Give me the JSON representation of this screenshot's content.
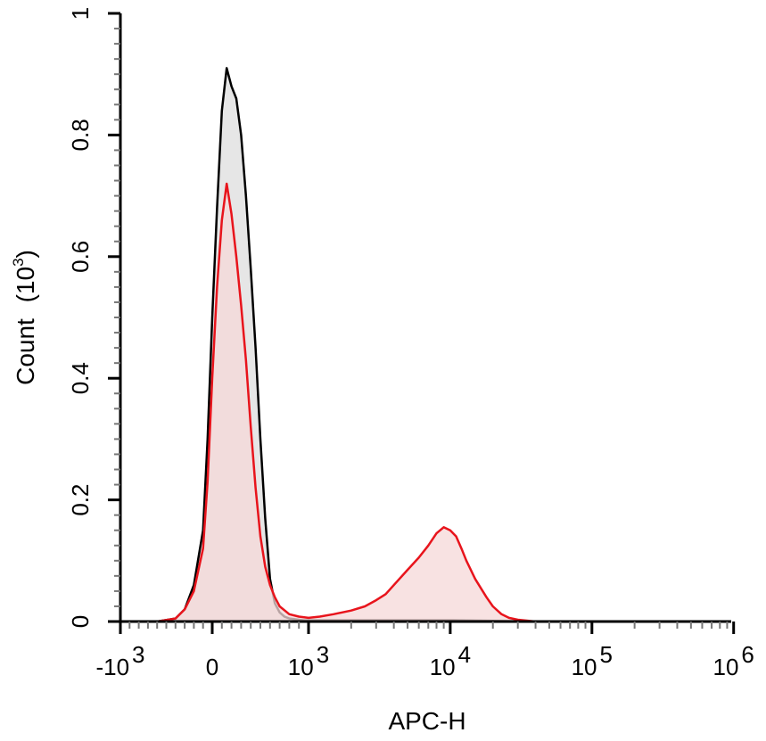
{
  "chart_data": {
    "type": "area",
    "xlabel": "APC-H",
    "ylabel": "Count",
    "ylabel_unit": "(10",
    "ylabel_unit_exp": "3",
    "ylabel_unit_close": ")",
    "x_scale": "biexponential",
    "xlim": [
      -1200,
      1000000
    ],
    "ylim": [
      0,
      1
    ],
    "grid": false,
    "x_ticks": [
      {
        "value": -1000,
        "base": "-10",
        "exp": "3"
      },
      {
        "value": 0,
        "base": "0",
        "exp": ""
      },
      {
        "value": 1000,
        "base": "10",
        "exp": "3"
      },
      {
        "value": 10000,
        "base": "10",
        "exp": "4"
      },
      {
        "value": 100000,
        "base": "10",
        "exp": "5"
      },
      {
        "value": 1000000,
        "base": "10",
        "exp": "6"
      }
    ],
    "y_ticks": [
      {
        "value": 0,
        "label": "0"
      },
      {
        "value": 0.2,
        "label": "0.2"
      },
      {
        "value": 0.4,
        "label": "0.4"
      },
      {
        "value": 0.6,
        "label": "0.6"
      },
      {
        "value": 0.8,
        "label": "0.8"
      },
      {
        "value": 1,
        "label": "1"
      }
    ],
    "series": [
      {
        "color": "#000000",
        "fill": "#e6e6e6",
        "x": [
          -800,
          -600,
          -400,
          -300,
          -200,
          -100,
          -50,
          0,
          50,
          100,
          150,
          200,
          250,
          300,
          350,
          400,
          450,
          500,
          550,
          600,
          650,
          700,
          750,
          800,
          850,
          900,
          950,
          1000,
          1100,
          1300,
          1600,
          2000,
          3000,
          5000,
          10000,
          20000,
          50000,
          100000
        ],
        "y": [
          0,
          0,
          0.005,
          0.02,
          0.06,
          0.15,
          0.3,
          0.5,
          0.68,
          0.84,
          0.91,
          0.88,
          0.86,
          0.8,
          0.7,
          0.58,
          0.45,
          0.3,
          0.17,
          0.07,
          0.03,
          0.015,
          0.008,
          0.005,
          0.004,
          0.003,
          0.002,
          0.002,
          0.002,
          0.002,
          0.002,
          0.002,
          0.002,
          0.002,
          0.002,
          0.001,
          0,
          0
        ]
      },
      {
        "color": "#e8141c",
        "fill": "#f5d8d8",
        "x": [
          -600,
          -400,
          -300,
          -200,
          -100,
          -50,
          0,
          50,
          100,
          150,
          200,
          250,
          300,
          350,
          400,
          450,
          500,
          550,
          600,
          650,
          700,
          800,
          900,
          1000,
          1200,
          1500,
          2000,
          2500,
          3000,
          3500,
          4000,
          5000,
          6000,
          7000,
          8000,
          9000,
          10000,
          11000,
          12000,
          13000,
          15000,
          18000,
          20000,
          23000,
          26000,
          30000,
          40000
        ],
        "y": [
          0,
          0.005,
          0.02,
          0.05,
          0.12,
          0.23,
          0.4,
          0.55,
          0.66,
          0.72,
          0.67,
          0.6,
          0.52,
          0.43,
          0.32,
          0.22,
          0.14,
          0.09,
          0.06,
          0.04,
          0.025,
          0.012,
          0.008,
          0.006,
          0.008,
          0.012,
          0.018,
          0.025,
          0.035,
          0.045,
          0.06,
          0.085,
          0.105,
          0.125,
          0.145,
          0.155,
          0.15,
          0.14,
          0.12,
          0.1,
          0.07,
          0.04,
          0.025,
          0.012,
          0.006,
          0.003,
          0
        ]
      }
    ]
  }
}
